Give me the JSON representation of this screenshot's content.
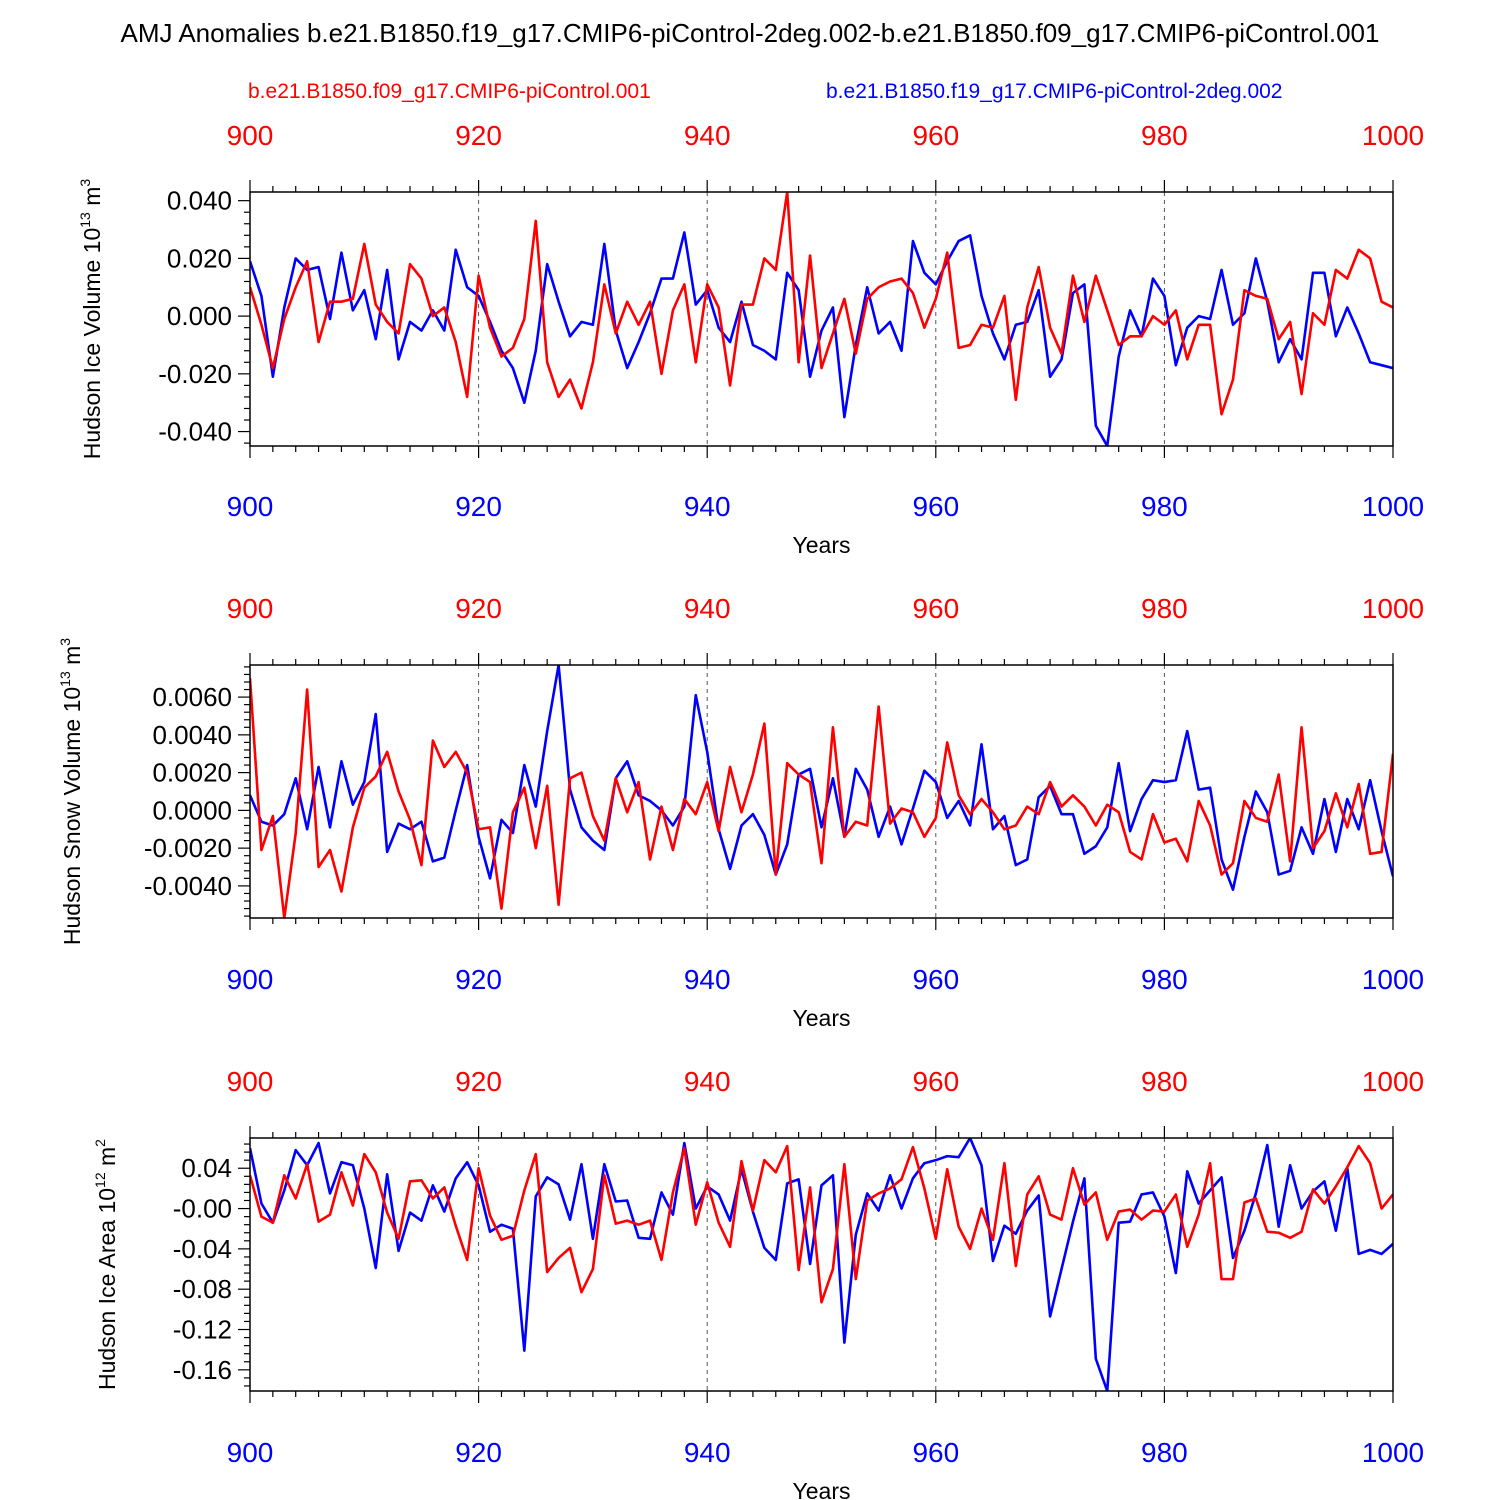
{
  "title": "AMJ Anomalies b.e21.B1850.f19_g17.CMIP6-piControl-2deg.002-b.e21.B1850.f09_g17.CMIP6-piControl.001",
  "legend": {
    "red": "b.e21.B1850.f09_g17.CMIP6-piControl.001",
    "blue": "b.e21.B1850.f19_g17.CMIP6-piControl-2deg.002"
  },
  "colors": {
    "red": "#ff0000",
    "blue": "#0000ff",
    "axis": "#000000"
  },
  "chart_data": [
    {
      "type": "line",
      "ylabel": "Hudson Ice Volume 10",
      "ylabel_sup": "13",
      "ylabel_unit": " m",
      "ylabel_unit_sup": "3",
      "xlabel": "Years",
      "xlim": [
        900,
        1000
      ],
      "ylim": [
        -0.045,
        0.043
      ],
      "xticks": [
        "900",
        "920",
        "940",
        "960",
        "980",
        "1000"
      ],
      "yticks": [
        {
          "value": 0.04,
          "label": "0.040"
        },
        {
          "value": 0.02,
          "label": "0.020"
        },
        {
          "value": 0.0,
          "label": "0.000"
        },
        {
          "value": -0.02,
          "label": "-0.020"
        },
        {
          "value": -0.04,
          "label": "-0.040"
        }
      ],
      "series": [
        {
          "name": "b.e21.B1850.f19_g17.CMIP6-piControl-2deg.002",
          "color": "blue",
          "values": [
            0.019,
            0.007,
            -0.021,
            0.003,
            0.02,
            0.016,
            0.017,
            -0.001,
            0.022,
            0.002,
            0.009,
            -0.008,
            0.016,
            -0.015,
            -0.002,
            -0.005,
            0.002,
            -0.005,
            0.023,
            0.01,
            0.007,
            -0.002,
            -0.012,
            -0.018,
            -0.03,
            -0.012,
            0.018,
            0.005,
            -0.007,
            -0.002,
            -0.003,
            0.025,
            -0.005,
            -0.018,
            -0.009,
            0.001,
            0.013,
            0.013,
            0.029,
            0.004,
            0.009,
            -0.004,
            -0.009,
            0.005,
            -0.01,
            -0.012,
            -0.015,
            0.015,
            0.009,
            -0.021,
            -0.005,
            0.003,
            -0.035,
            -0.01,
            0.01,
            -0.006,
            -0.002,
            -0.012,
            0.026,
            0.015,
            0.011,
            0.019,
            0.026,
            0.028,
            0.007,
            -0.006,
            -0.015,
            -0.003,
            -0.002,
            0.009,
            -0.021,
            -0.015,
            0.008,
            0.011,
            -0.038,
            -0.045,
            -0.014,
            0.002,
            -0.007,
            0.013,
            0.007,
            -0.017,
            -0.004,
            0.0,
            -0.001,
            0.016,
            -0.003,
            0.001,
            0.02,
            0.005,
            -0.016,
            -0.008,
            -0.015,
            0.015,
            0.015,
            -0.007,
            0.003,
            -0.006,
            -0.016,
            -0.017,
            -0.018
          ]
        },
        {
          "name": "b.e21.B1850.f09_g17.CMIP6-piControl.001",
          "color": "red",
          "values": [
            0.01,
            -0.003,
            -0.018,
            -0.001,
            0.01,
            0.019,
            -0.009,
            0.005,
            0.005,
            0.006,
            0.025,
            0.004,
            -0.002,
            -0.006,
            0.018,
            0.013,
            0.0,
            0.003,
            -0.009,
            -0.028,
            0.014,
            -0.004,
            -0.014,
            -0.011,
            -0.001,
            0.033,
            -0.016,
            -0.028,
            -0.022,
            -0.032,
            -0.016,
            0.011,
            -0.006,
            0.005,
            -0.003,
            0.005,
            -0.02,
            0.002,
            0.011,
            -0.016,
            0.011,
            0.003,
            -0.024,
            0.004,
            0.004,
            0.02,
            0.016,
            0.043,
            -0.016,
            0.021,
            -0.018,
            -0.006,
            0.006,
            -0.013,
            0.006,
            0.01,
            0.012,
            0.013,
            0.008,
            -0.004,
            0.006,
            0.022,
            -0.011,
            -0.01,
            -0.003,
            -0.004,
            0.007,
            -0.029,
            0.003,
            0.017,
            -0.004,
            -0.013,
            0.014,
            -0.002,
            0.014,
            0.002,
            -0.01,
            -0.007,
            -0.007,
            0.0,
            -0.003,
            0.002,
            -0.015,
            -0.003,
            -0.003,
            -0.034,
            -0.022,
            0.009,
            0.007,
            0.006,
            -0.008,
            -0.002,
            -0.027,
            0.001,
            -0.003,
            0.016,
            0.013,
            0.023,
            0.02,
            0.005,
            0.003
          ]
        }
      ]
    },
    {
      "type": "line",
      "ylabel": "Hudson Snow Volume 10",
      "ylabel_sup": "13",
      "ylabel_unit": " m",
      "ylabel_unit_sup": "3",
      "xlabel": "Years",
      "xlim": [
        900,
        1000
      ],
      "ylim": [
        -0.0057,
        0.0077
      ],
      "xticks": [
        "900",
        "920",
        "940",
        "960",
        "980",
        "1000"
      ],
      "yticks": [
        {
          "value": 0.006,
          "label": "0.0060"
        },
        {
          "value": 0.004,
          "label": "0.0040"
        },
        {
          "value": 0.002,
          "label": "0.0020"
        },
        {
          "value": 0.0,
          "label": "0.0000"
        },
        {
          "value": -0.002,
          "label": "-0.0020"
        },
        {
          "value": -0.004,
          "label": "-0.0040"
        }
      ],
      "series": [
        {
          "name": "b.e21.B1850.f19_g17.CMIP6-piControl-2deg.002",
          "color": "blue",
          "values": [
            0.0008,
            -0.0006,
            -0.0008,
            -0.0002,
            0.0017,
            -0.001,
            0.0023,
            -0.0009,
            0.0026,
            0.0003,
            0.0015,
            0.0051,
            -0.0022,
            -0.0007,
            -0.001,
            -0.0006,
            -0.0027,
            -0.0025,
            0.0,
            0.0024,
            -0.0014,
            -0.0036,
            -0.0005,
            -0.0012,
            0.0024,
            0.0002,
            0.0042,
            0.0077,
            0.0011,
            -0.0009,
            -0.0016,
            -0.0021,
            0.0017,
            0.0026,
            0.0008,
            0.0005,
            0.0,
            -0.0008,
            0.0002,
            0.0061,
            0.0031,
            -0.001,
            -0.0031,
            -0.0008,
            -0.0002,
            -0.0013,
            -0.0034,
            -0.0018,
            0.0019,
            0.0022,
            -0.0009,
            0.0017,
            -0.0014,
            0.0022,
            0.0011,
            -0.0014,
            0.0002,
            -0.0018,
            0.0001,
            0.0021,
            0.0015,
            -0.0004,
            0.0005,
            -0.0008,
            0.0035,
            -0.001,
            -0.0003,
            -0.0029,
            -0.0026,
            0.0007,
            0.0013,
            -0.0002,
            -0.0002,
            -0.0023,
            -0.0019,
            -0.0009,
            0.0025,
            -0.0011,
            0.0006,
            0.0016,
            0.0015,
            0.0016,
            0.0042,
            0.0011,
            0.0012,
            -0.0026,
            -0.0042,
            -0.0014,
            0.001,
            -0.0001,
            -0.0034,
            -0.0032,
            -0.0009,
            -0.0023,
            0.0006,
            -0.0022,
            0.0006,
            -0.001,
            0.0016,
            -0.0011,
            -0.0035
          ]
        },
        {
          "name": "b.e21.B1850.f09_g17.CMIP6-piControl.001",
          "color": "red",
          "values": [
            0.007,
            -0.0021,
            -0.0003,
            -0.0057,
            -0.0012,
            0.0064,
            -0.003,
            -0.0021,
            -0.0043,
            -0.0009,
            0.0012,
            0.0018,
            0.0031,
            0.001,
            -0.0005,
            -0.0029,
            0.0037,
            0.0023,
            0.0031,
            0.002,
            -0.001,
            -0.0009,
            -0.0052,
            -0.0001,
            0.0012,
            -0.002,
            0.0013,
            -0.005,
            0.0017,
            0.002,
            -0.0003,
            -0.0016,
            0.0017,
            -0.0001,
            0.0015,
            -0.0026,
            0.0002,
            -0.0021,
            0.0006,
            -0.0002,
            0.0015,
            -0.0011,
            0.0023,
            -0.0001,
            0.0019,
            0.0046,
            -0.0034,
            0.0025,
            0.0019,
            0.0015,
            -0.0028,
            0.0044,
            -0.0014,
            -0.0006,
            -0.0008,
            0.0055,
            -0.0007,
            0.0001,
            -0.0001,
            -0.0014,
            -0.0004,
            0.0036,
            0.0008,
            -0.0002,
            0.0006,
            -0.0001,
            -0.001,
            -0.0008,
            0.0002,
            -0.0002,
            0.0015,
            0.0002,
            0.0008,
            0.0002,
            -0.0008,
            0.0003,
            -0.0001,
            -0.0022,
            -0.0026,
            -0.0002,
            -0.0017,
            -0.0015,
            -0.0027,
            0.0005,
            -0.0008,
            -0.0034,
            -0.0028,
            0.0005,
            -0.0004,
            -0.0006,
            0.0019,
            -0.0027,
            0.0044,
            -0.002,
            -0.0011,
            0.0009,
            -0.0009,
            0.0014,
            -0.0023,
            -0.0022,
            0.003
          ]
        }
      ]
    },
    {
      "type": "line",
      "ylabel": "Hudson Ice Area 10",
      "ylabel_sup": "12",
      "ylabel_unit": " m",
      "ylabel_unit_sup": "2",
      "xlabel": "Years",
      "xlim": [
        900,
        1000
      ],
      "ylim": [
        -0.181,
        0.07
      ],
      "xticks": [
        "900",
        "920",
        "940",
        "960",
        "980",
        "1000"
      ],
      "yticks": [
        {
          "value": 0.04,
          "label": "0.04"
        },
        {
          "value": 0.0,
          "label": "-0.00"
        },
        {
          "value": -0.04,
          "label": "-0.04"
        },
        {
          "value": -0.08,
          "label": "-0.08"
        },
        {
          "value": -0.12,
          "label": "-0.12"
        },
        {
          "value": -0.16,
          "label": "-0.16"
        }
      ],
      "series": [
        {
          "name": "b.e21.B1850.f19_g17.CMIP6-piControl-2deg.002",
          "color": "blue",
          "values": [
            0.06,
            0.005,
            -0.014,
            0.018,
            0.058,
            0.043,
            0.065,
            0.015,
            0.046,
            0.043,
            0.0,
            -0.059,
            0.034,
            -0.042,
            -0.004,
            -0.012,
            0.023,
            -0.003,
            0.03,
            0.046,
            0.023,
            -0.023,
            -0.016,
            -0.02,
            -0.141,
            0.012,
            0.031,
            0.024,
            -0.011,
            0.044,
            -0.03,
            0.044,
            0.007,
            0.008,
            -0.029,
            -0.03,
            0.016,
            -0.006,
            0.065,
            0.0,
            0.022,
            0.014,
            -0.012,
            0.039,
            -0.003,
            -0.039,
            -0.051,
            0.025,
            0.029,
            -0.055,
            0.023,
            0.033,
            -0.133,
            -0.026,
            0.015,
            -0.002,
            0.033,
            0.0,
            0.03,
            0.045,
            0.048,
            0.052,
            0.051,
            0.07,
            0.043,
            -0.052,
            -0.017,
            -0.025,
            -0.002,
            0.013,
            -0.107,
            -0.06,
            -0.013,
            0.03,
            -0.149,
            -0.181,
            -0.014,
            -0.013,
            0.014,
            0.016,
            -0.008,
            -0.064,
            0.037,
            0.005,
            0.018,
            0.031,
            -0.049,
            -0.022,
            0.015,
            0.063,
            -0.018,
            0.043,
            0.0,
            0.017,
            0.027,
            -0.022,
            0.04,
            -0.045,
            -0.041,
            -0.045,
            -0.035
          ]
        },
        {
          "name": "b.e21.B1850.f09_g17.CMIP6-piControl.001",
          "color": "red",
          "values": [
            0.033,
            -0.008,
            -0.014,
            0.033,
            0.01,
            0.044,
            -0.013,
            -0.006,
            0.036,
            0.003,
            0.054,
            0.036,
            -0.004,
            -0.03,
            0.027,
            0.028,
            0.01,
            0.021,
            -0.017,
            -0.051,
            0.04,
            -0.007,
            -0.031,
            -0.027,
            0.018,
            0.054,
            -0.063,
            -0.049,
            -0.039,
            -0.083,
            -0.06,
            0.033,
            -0.015,
            -0.012,
            -0.016,
            -0.012,
            -0.051,
            0.016,
            0.06,
            -0.016,
            0.026,
            -0.014,
            -0.038,
            0.047,
            -0.002,
            0.048,
            0.036,
            0.062,
            -0.061,
            0.021,
            -0.093,
            -0.06,
            0.044,
            -0.07,
            0.008,
            0.015,
            0.02,
            0.029,
            0.061,
            0.02,
            -0.03,
            0.039,
            -0.018,
            -0.04,
            0.0,
            -0.031,
            0.045,
            -0.057,
            0.014,
            0.032,
            -0.006,
            -0.011,
            0.04,
            0.004,
            0.016,
            -0.031,
            -0.003,
            -0.001,
            -0.011,
            -0.002,
            -0.003,
            0.014,
            -0.038,
            -0.006,
            0.045,
            -0.07,
            -0.07,
            0.006,
            0.01,
            -0.023,
            -0.024,
            -0.029,
            -0.023,
            0.019,
            0.005,
            0.022,
            0.041,
            0.062,
            0.045,
            0.0,
            0.014
          ]
        }
      ]
    }
  ]
}
